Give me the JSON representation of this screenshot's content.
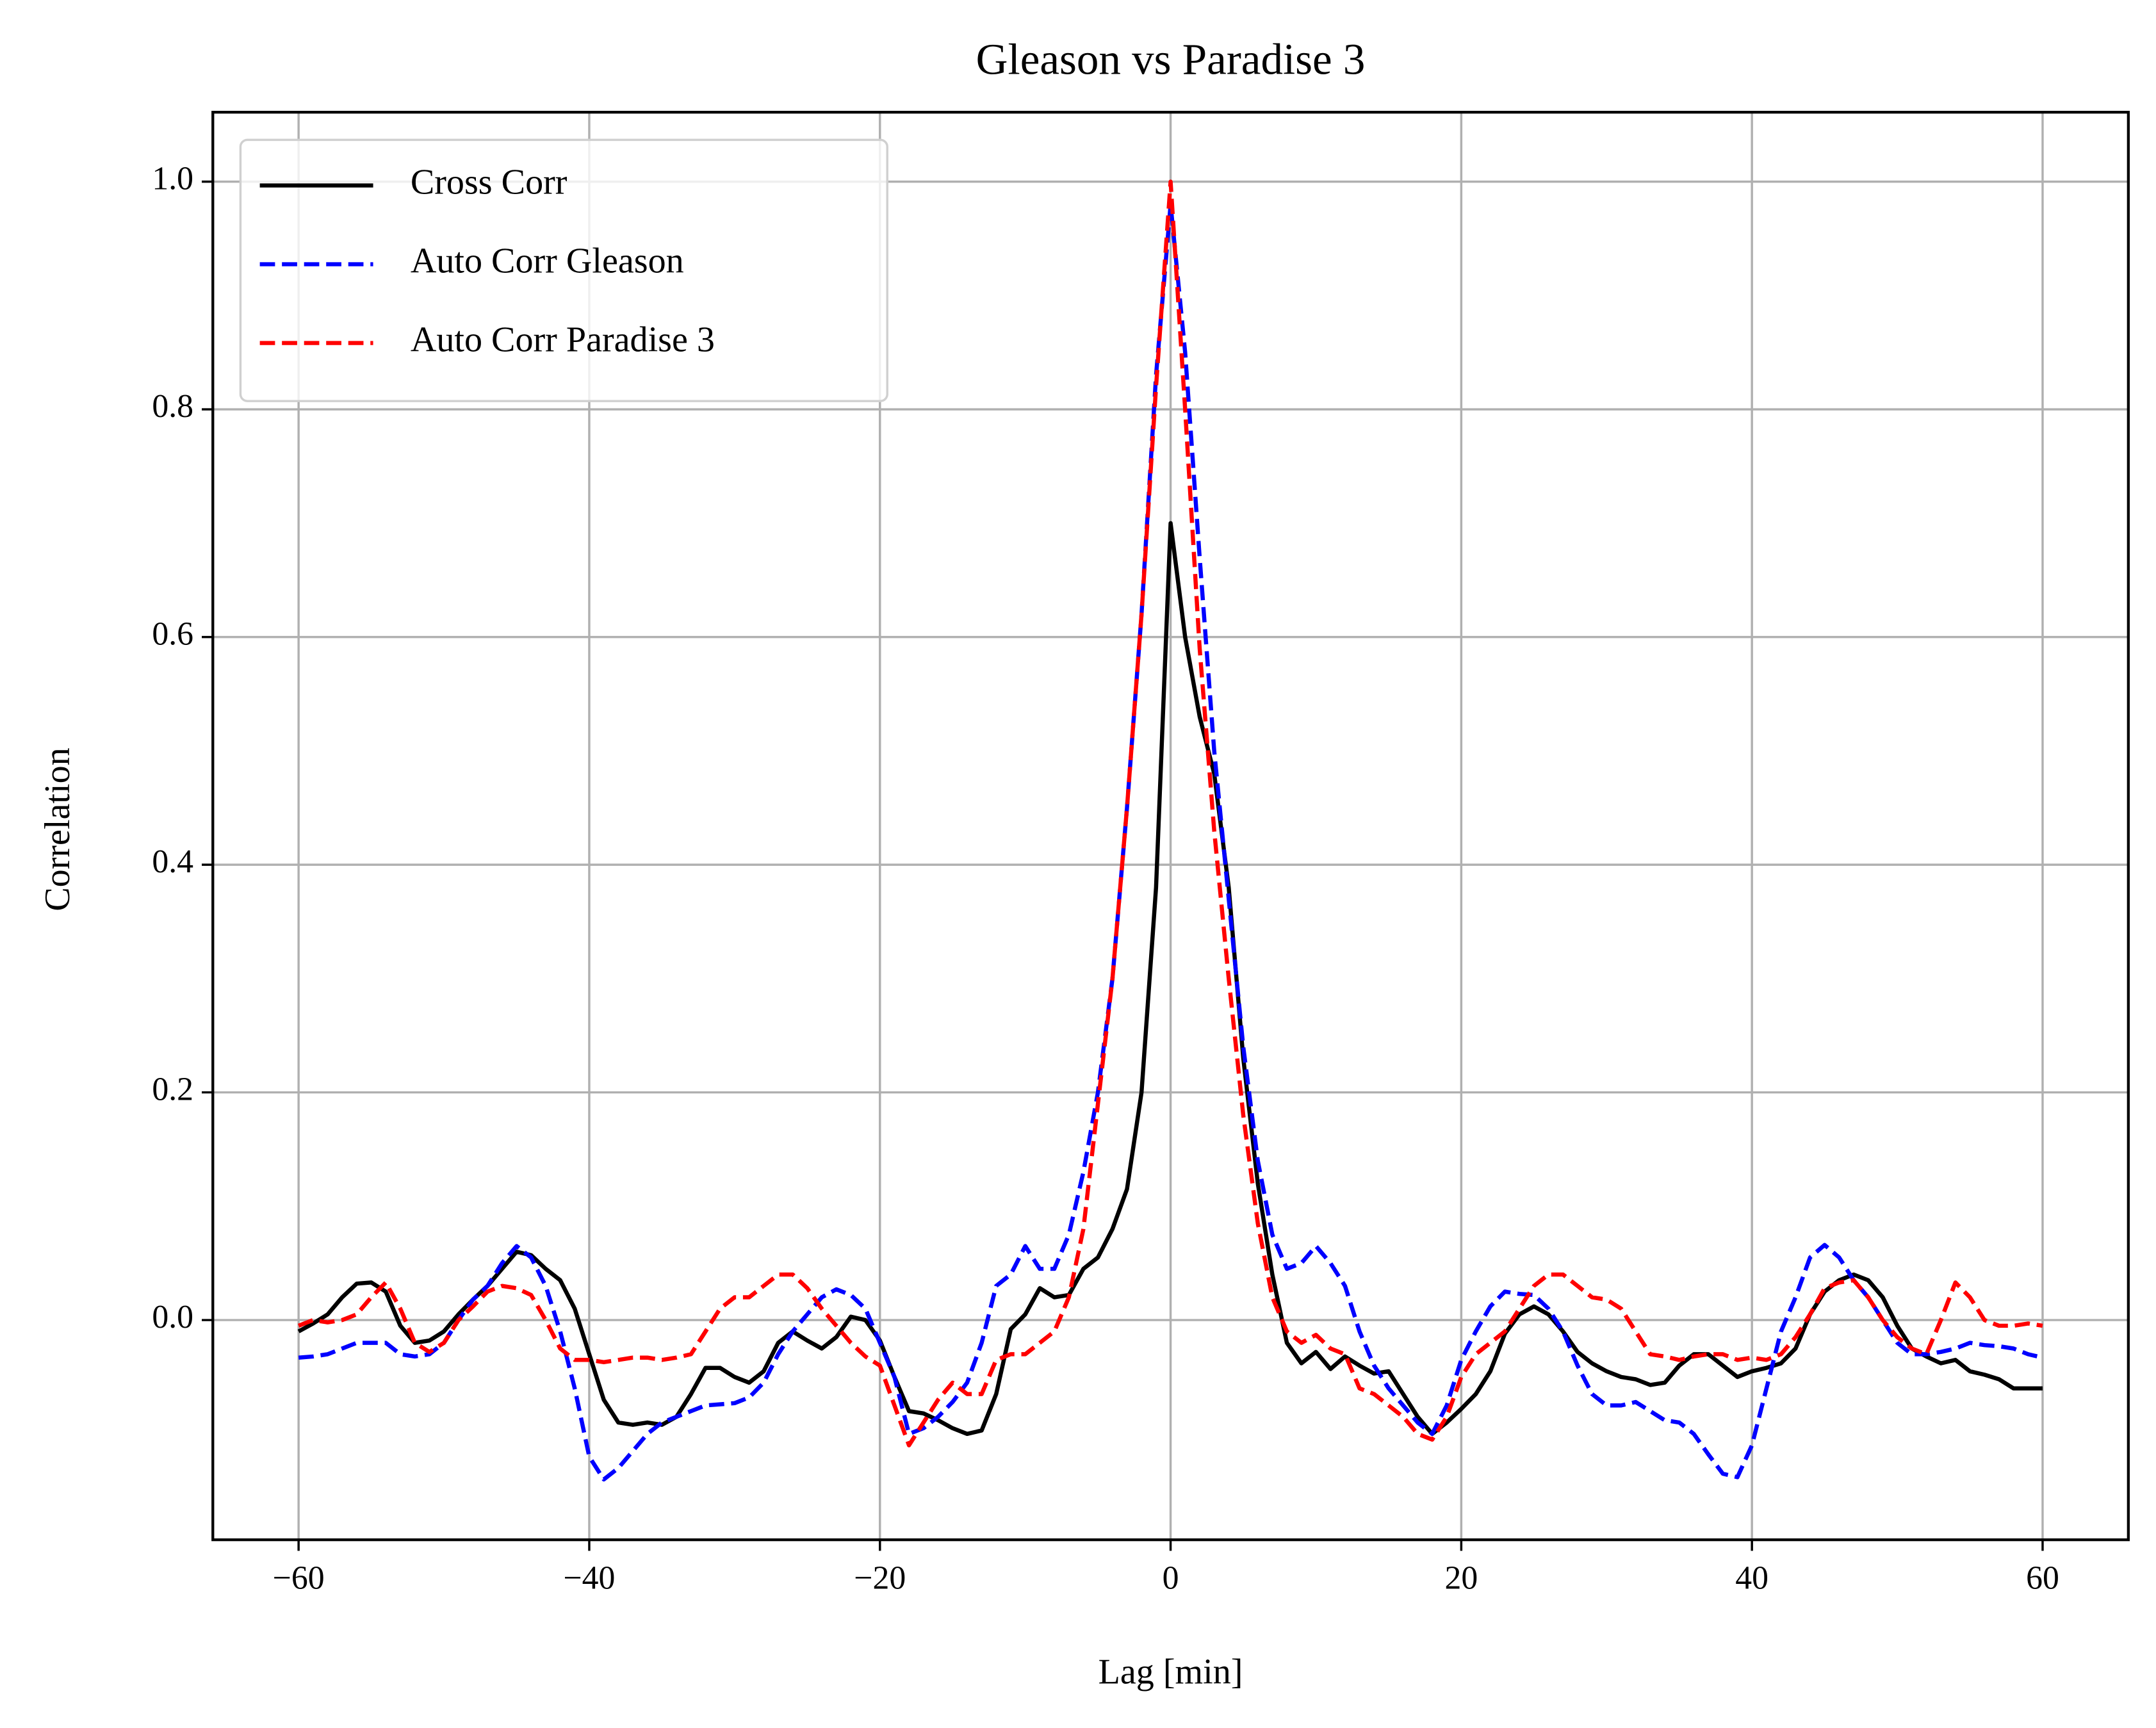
{
  "chart_data": {
    "type": "line",
    "title": "Gleason vs Paradise 3",
    "x_label": "Lag [min]",
    "y_label": "Correlation",
    "xlim": [
      -65.9,
      65.9
    ],
    "ylim": [
      -0.193,
      1.061
    ],
    "xticks": [
      {
        "value": -60,
        "label": "−60"
      },
      {
        "value": -40,
        "label": "−40"
      },
      {
        "value": -20,
        "label": "−20"
      },
      0,
      20,
      40,
      60
    ],
    "yticks": [
      {
        "value": 0,
        "label": "0.0"
      },
      0.2,
      0.4,
      0.6,
      0.8,
      {
        "value": 1,
        "label": "1.0"
      }
    ],
    "grid": true,
    "legend": "upper left",
    "x": [
      -60,
      -59,
      -58,
      -57,
      -56,
      -55,
      -54,
      -53,
      -52,
      -51,
      -50,
      -49,
      -48,
      -47,
      -46,
      -45,
      -44,
      -43,
      -42,
      -41,
      -40,
      -39,
      -38,
      -37,
      -36,
      -35,
      -34,
      -33,
      -32,
      -31,
      -30,
      -29,
      -28,
      -27,
      -26,
      -25,
      -24,
      -23,
      -22,
      -21,
      -20,
      -19,
      -18,
      -17,
      -16,
      -15,
      -14,
      -13,
      -12,
      -11,
      -10,
      -9,
      -8,
      -7,
      -6,
      -5,
      -4,
      -3,
      -2,
      -1,
      0,
      1,
      2,
      3,
      4,
      5,
      6,
      7,
      8,
      9,
      10,
      11,
      12,
      13,
      14,
      15,
      16,
      17,
      18,
      19,
      20,
      21,
      22,
      23,
      24,
      25,
      26,
      27,
      28,
      29,
      30,
      31,
      32,
      33,
      34,
      35,
      36,
      37,
      38,
      39,
      40,
      41,
      42,
      43,
      44,
      45,
      46,
      47,
      48,
      49,
      50,
      51,
      52,
      53,
      54,
      55,
      56,
      57,
      58,
      59,
      60
    ],
    "series": [
      {
        "name": "Cross Corr",
        "color": "#000000",
        "style": "solid",
        "values": [
          -0.01,
          -0.003,
          0.005,
          0.02,
          0.032,
          0.033,
          0.025,
          -0.005,
          -0.02,
          -0.018,
          -0.01,
          0.005,
          0.018,
          0.03,
          0.045,
          0.06,
          0.057,
          0.045,
          0.035,
          0.01,
          -0.03,
          -0.07,
          -0.09,
          -0.092,
          -0.09,
          -0.092,
          -0.085,
          -0.065,
          -0.042,
          -0.042,
          -0.05,
          -0.055,
          -0.045,
          -0.02,
          -0.01,
          -0.018,
          -0.025,
          -0.015,
          0.003,
          0.0,
          -0.018,
          -0.05,
          -0.08,
          -0.082,
          -0.088,
          -0.095,
          -0.1,
          -0.097,
          -0.065,
          -0.008,
          0.005,
          0.028,
          0.02,
          0.022,
          0.045,
          0.055,
          0.08,
          0.115,
          0.2,
          0.38,
          0.7,
          0.6,
          0.53,
          0.48,
          0.38,
          0.23,
          0.12,
          0.04,
          -0.02,
          -0.038,
          -0.028,
          -0.043,
          -0.032,
          -0.04,
          -0.047,
          -0.045,
          -0.065,
          -0.085,
          -0.1,
          -0.09,
          -0.078,
          -0.065,
          -0.045,
          -0.012,
          0.005,
          0.012,
          0.005,
          -0.01,
          -0.028,
          -0.038,
          -0.045,
          -0.05,
          -0.052,
          -0.057,
          -0.055,
          -0.04,
          -0.03,
          -0.03,
          -0.04,
          -0.05,
          -0.045,
          -0.042,
          -0.038,
          -0.025,
          0.005,
          0.025,
          0.035,
          0.04,
          0.035,
          0.02,
          -0.005,
          -0.025,
          -0.032,
          -0.038,
          -0.035,
          -0.045,
          -0.048,
          -0.052,
          -0.06,
          -0.06,
          -0.06
        ]
      },
      {
        "name": "Auto Corr Gleason",
        "color": "#0000ff",
        "style": "dashed",
        "values": [
          -0.033,
          -0.032,
          -0.03,
          -0.025,
          -0.02,
          -0.02,
          -0.02,
          -0.03,
          -0.032,
          -0.03,
          -0.02,
          0.0,
          0.018,
          0.03,
          0.05,
          0.065,
          0.055,
          0.03,
          -0.01,
          -0.06,
          -0.12,
          -0.14,
          -0.13,
          -0.115,
          -0.1,
          -0.09,
          -0.085,
          -0.08,
          -0.075,
          -0.074,
          -0.073,
          -0.068,
          -0.055,
          -0.03,
          -0.01,
          0.005,
          0.02,
          0.027,
          0.022,
          0.01,
          -0.02,
          -0.05,
          -0.1,
          -0.095,
          -0.085,
          -0.072,
          -0.055,
          -0.02,
          0.03,
          0.04,
          0.065,
          0.045,
          0.045,
          0.075,
          0.13,
          0.2,
          0.3,
          0.45,
          0.62,
          0.83,
          0.98,
          0.85,
          0.67,
          0.5,
          0.37,
          0.24,
          0.14,
          0.075,
          0.045,
          0.05,
          0.065,
          0.05,
          0.03,
          -0.01,
          -0.04,
          -0.06,
          -0.075,
          -0.09,
          -0.1,
          -0.075,
          -0.035,
          -0.01,
          0.012,
          0.025,
          0.023,
          0.022,
          0.01,
          -0.01,
          -0.04,
          -0.065,
          -0.075,
          -0.075,
          -0.072,
          -0.08,
          -0.088,
          -0.09,
          -0.1,
          -0.118,
          -0.135,
          -0.138,
          -0.11,
          -0.06,
          -0.01,
          0.02,
          0.055,
          0.066,
          0.055,
          0.035,
          0.02,
          0.0,
          -0.02,
          -0.03,
          -0.03,
          -0.028,
          -0.025,
          -0.02,
          -0.022,
          -0.023,
          -0.025,
          -0.03,
          -0.033
        ]
      },
      {
        "name": "Auto Corr Paradise 3",
        "color": "#ff0000",
        "style": "dashed",
        "values": [
          -0.005,
          0.0,
          -0.002,
          0.0,
          0.005,
          0.02,
          0.033,
          0.01,
          -0.02,
          -0.028,
          -0.02,
          0.0,
          0.012,
          0.025,
          0.03,
          0.028,
          0.022,
          0.0,
          -0.025,
          -0.035,
          -0.035,
          -0.037,
          -0.035,
          -0.033,
          -0.033,
          -0.035,
          -0.033,
          -0.03,
          -0.01,
          0.01,
          0.02,
          0.02,
          0.03,
          0.04,
          0.04,
          0.028,
          0.01,
          -0.005,
          -0.02,
          -0.032,
          -0.04,
          -0.075,
          -0.11,
          -0.09,
          -0.07,
          -0.055,
          -0.065,
          -0.065,
          -0.035,
          -0.03,
          -0.03,
          -0.02,
          -0.01,
          0.02,
          0.08,
          0.19,
          0.3,
          0.45,
          0.62,
          0.82,
          1.0,
          0.8,
          0.59,
          0.43,
          0.3,
          0.18,
          0.085,
          0.02,
          -0.01,
          -0.02,
          -0.013,
          -0.025,
          -0.03,
          -0.06,
          -0.065,
          -0.075,
          -0.085,
          -0.1,
          -0.105,
          -0.085,
          -0.05,
          -0.03,
          -0.02,
          -0.01,
          0.01,
          0.03,
          0.04,
          0.04,
          0.03,
          0.02,
          0.018,
          0.01,
          -0.01,
          -0.03,
          -0.032,
          -0.035,
          -0.032,
          -0.03,
          -0.03,
          -0.035,
          -0.033,
          -0.035,
          -0.03,
          -0.015,
          0.005,
          0.028,
          0.033,
          0.035,
          0.02,
          0.0,
          -0.015,
          -0.025,
          -0.03,
          0.0,
          0.033,
          0.02,
          0.0,
          -0.005,
          -0.005,
          -0.003,
          -0.005
        ]
      }
    ]
  }
}
